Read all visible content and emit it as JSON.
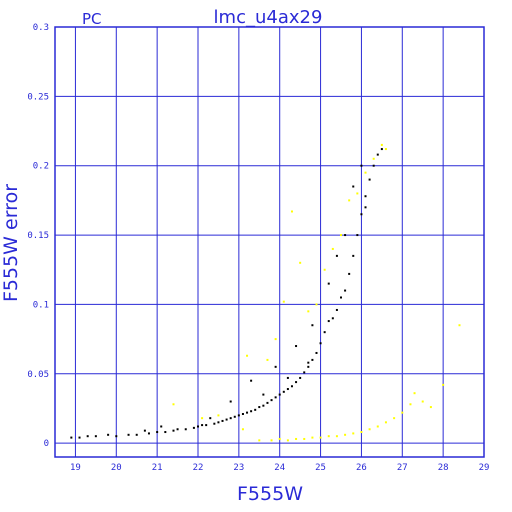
{
  "chart_data": {
    "type": "scatter",
    "panel_label": "PC",
    "title": "lmc_u4ax29",
    "xlabel": "F555W",
    "ylabel": "F555W error",
    "xlim": [
      18.5,
      29
    ],
    "ylim": [
      -0.01,
      0.3
    ],
    "x_ticks": [
      "19",
      "20",
      "21",
      "22",
      "23",
      "24",
      "25",
      "26",
      "27",
      "28",
      "29"
    ],
    "y_ticks": [
      "0",
      "0.05",
      "0.1",
      "0.15",
      "0.2",
      "0.25",
      "0.3"
    ],
    "grid": true,
    "colors": {
      "axis": "#2a2ad6",
      "grid": "#2a2ad6",
      "black_series": "#000000",
      "yellow_series": "#ffff00"
    },
    "series": [
      {
        "color": "#000000",
        "points": [
          [
            18.9,
            0.004
          ],
          [
            19.1,
            0.004
          ],
          [
            19.3,
            0.005
          ],
          [
            19.5,
            0.005
          ],
          [
            19.8,
            0.006
          ],
          [
            20.0,
            0.005
          ],
          [
            20.3,
            0.006
          ],
          [
            20.5,
            0.006
          ],
          [
            20.8,
            0.007
          ],
          [
            21.0,
            0.008
          ],
          [
            21.2,
            0.008
          ],
          [
            21.4,
            0.009
          ],
          [
            21.5,
            0.01
          ],
          [
            21.7,
            0.01
          ],
          [
            21.9,
            0.011
          ],
          [
            22.0,
            0.012
          ],
          [
            22.1,
            0.013
          ],
          [
            22.2,
            0.013
          ],
          [
            22.4,
            0.014
          ],
          [
            22.5,
            0.015
          ],
          [
            22.6,
            0.016
          ],
          [
            22.7,
            0.017
          ],
          [
            22.8,
            0.018
          ],
          [
            22.9,
            0.019
          ],
          [
            23.0,
            0.02
          ],
          [
            23.1,
            0.021
          ],
          [
            23.2,
            0.022
          ],
          [
            23.3,
            0.023
          ],
          [
            23.4,
            0.024
          ],
          [
            23.5,
            0.026
          ],
          [
            23.6,
            0.027
          ],
          [
            23.7,
            0.029
          ],
          [
            23.8,
            0.031
          ],
          [
            23.9,
            0.033
          ],
          [
            24.0,
            0.035
          ],
          [
            24.1,
            0.037
          ],
          [
            24.2,
            0.039
          ],
          [
            24.3,
            0.041
          ],
          [
            24.4,
            0.044
          ],
          [
            24.5,
            0.047
          ],
          [
            24.6,
            0.051
          ],
          [
            24.7,
            0.055
          ],
          [
            24.8,
            0.06
          ],
          [
            24.9,
            0.065
          ],
          [
            25.0,
            0.072
          ],
          [
            25.1,
            0.08
          ],
          [
            25.2,
            0.088
          ],
          [
            25.3,
            0.09
          ],
          [
            25.4,
            0.096
          ],
          [
            25.5,
            0.105
          ],
          [
            25.6,
            0.11
          ],
          [
            25.7,
            0.122
          ],
          [
            25.8,
            0.135
          ],
          [
            25.9,
            0.15
          ],
          [
            26.0,
            0.165
          ],
          [
            26.1,
            0.178
          ],
          [
            26.2,
            0.19
          ],
          [
            26.3,
            0.2
          ],
          [
            26.4,
            0.208
          ],
          [
            26.5,
            0.212
          ],
          [
            22.8,
            0.03
          ],
          [
            23.3,
            0.045
          ],
          [
            23.9,
            0.055
          ],
          [
            24.4,
            0.07
          ],
          [
            24.8,
            0.085
          ],
          [
            25.2,
            0.115
          ],
          [
            25.6,
            0.15
          ],
          [
            25.8,
            0.185
          ],
          [
            26.0,
            0.2
          ],
          [
            26.1,
            0.17
          ],
          [
            25.4,
            0.135
          ],
          [
            24.7,
            0.058
          ],
          [
            24.2,
            0.047
          ],
          [
            23.6,
            0.035
          ],
          [
            22.3,
            0.018
          ],
          [
            21.1,
            0.012
          ],
          [
            20.7,
            0.009
          ]
        ]
      },
      {
        "color": "#ffff00",
        "points": [
          [
            21.4,
            0.028
          ],
          [
            22.1,
            0.018
          ],
          [
            22.5,
            0.02
          ],
          [
            23.1,
            0.01
          ],
          [
            23.5,
            0.002
          ],
          [
            23.8,
            0.002
          ],
          [
            24.0,
            0.003
          ],
          [
            24.2,
            0.002
          ],
          [
            24.4,
            0.003
          ],
          [
            24.6,
            0.003
          ],
          [
            24.8,
            0.004
          ],
          [
            25.0,
            0.004
          ],
          [
            25.2,
            0.005
          ],
          [
            25.4,
            0.005
          ],
          [
            25.6,
            0.006
          ],
          [
            25.8,
            0.007
          ],
          [
            26.0,
            0.008
          ],
          [
            26.2,
            0.01
          ],
          [
            26.4,
            0.012
          ],
          [
            26.6,
            0.015
          ],
          [
            26.8,
            0.018
          ],
          [
            27.0,
            0.022
          ],
          [
            27.2,
            0.028
          ],
          [
            27.3,
            0.036
          ],
          [
            27.5,
            0.03
          ],
          [
            27.7,
            0.026
          ],
          [
            28.0,
            0.042
          ],
          [
            28.4,
            0.085
          ],
          [
            23.7,
            0.06
          ],
          [
            23.9,
            0.075
          ],
          [
            24.1,
            0.102
          ],
          [
            24.3,
            0.167
          ],
          [
            24.5,
            0.13
          ],
          [
            24.9,
            0.1
          ],
          [
            25.1,
            0.125
          ],
          [
            25.3,
            0.14
          ],
          [
            25.5,
            0.15
          ],
          [
            25.7,
            0.175
          ],
          [
            25.9,
            0.18
          ],
          [
            26.1,
            0.195
          ],
          [
            26.3,
            0.205
          ],
          [
            26.5,
            0.215
          ],
          [
            26.6,
            0.212
          ],
          [
            23.2,
            0.063
          ],
          [
            24.7,
            0.095
          ]
        ]
      }
    ]
  }
}
